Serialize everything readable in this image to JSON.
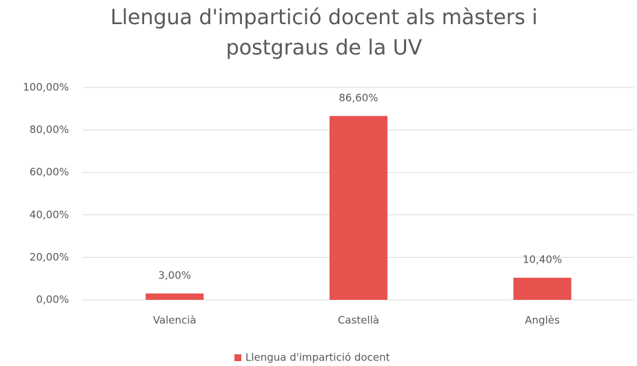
{
  "chart_data": {
    "type": "bar",
    "title": "Llengua d'impartició docent als màsters i postgraus de la UV",
    "categories": [
      "Valencià",
      "Castellà",
      "Anglès"
    ],
    "series": [
      {
        "name": "Llengua d'impartició docent",
        "color": "#e8524f",
        "values": [
          3,
          86.6,
          10.4
        ],
        "value_labels": [
          "3,00%",
          "86,60%",
          "10,40%"
        ]
      }
    ],
    "ylim": [
      0,
      100
    ],
    "yticks": [
      {
        "value": 0,
        "label": "0,00%"
      },
      {
        "value": 20,
        "label": "20,00%"
      },
      {
        "value": 40,
        "label": "40,00%"
      },
      {
        "value": 60,
        "label": "60,00%"
      },
      {
        "value": 80,
        "label": "80,00%"
      },
      {
        "value": 100,
        "label": "100,00%"
      }
    ],
    "grid": true,
    "legend": "bottom"
  }
}
